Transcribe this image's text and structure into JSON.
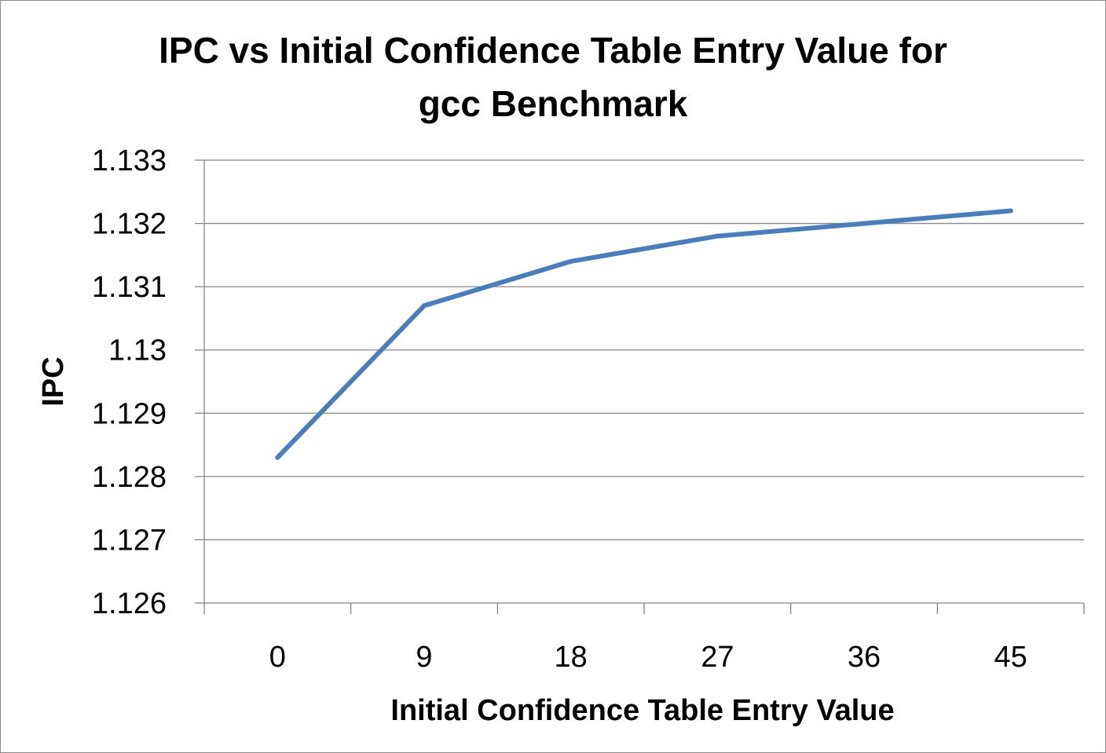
{
  "chart_data": {
    "type": "line",
    "title_lines": [
      "IPC vs Initial Confidence Table Entry Value for",
      "gcc Benchmark"
    ],
    "xlabel": "Initial Confidence Table Entry Value",
    "ylabel": "IPC",
    "categories": [
      "0",
      "9",
      "18",
      "27",
      "36",
      "45"
    ],
    "y_ticks": [
      "1.126",
      "1.127",
      "1.128",
      "1.129",
      "1.13",
      "1.131",
      "1.132",
      "1.133"
    ],
    "ylim": [
      1.126,
      1.133
    ],
    "grid": true,
    "legend": "none",
    "series": [
      {
        "color": "#4a7ebb",
        "values": [
          1.1283,
          1.1307,
          1.1314,
          1.1318,
          1.132,
          1.1322
        ]
      }
    ]
  }
}
